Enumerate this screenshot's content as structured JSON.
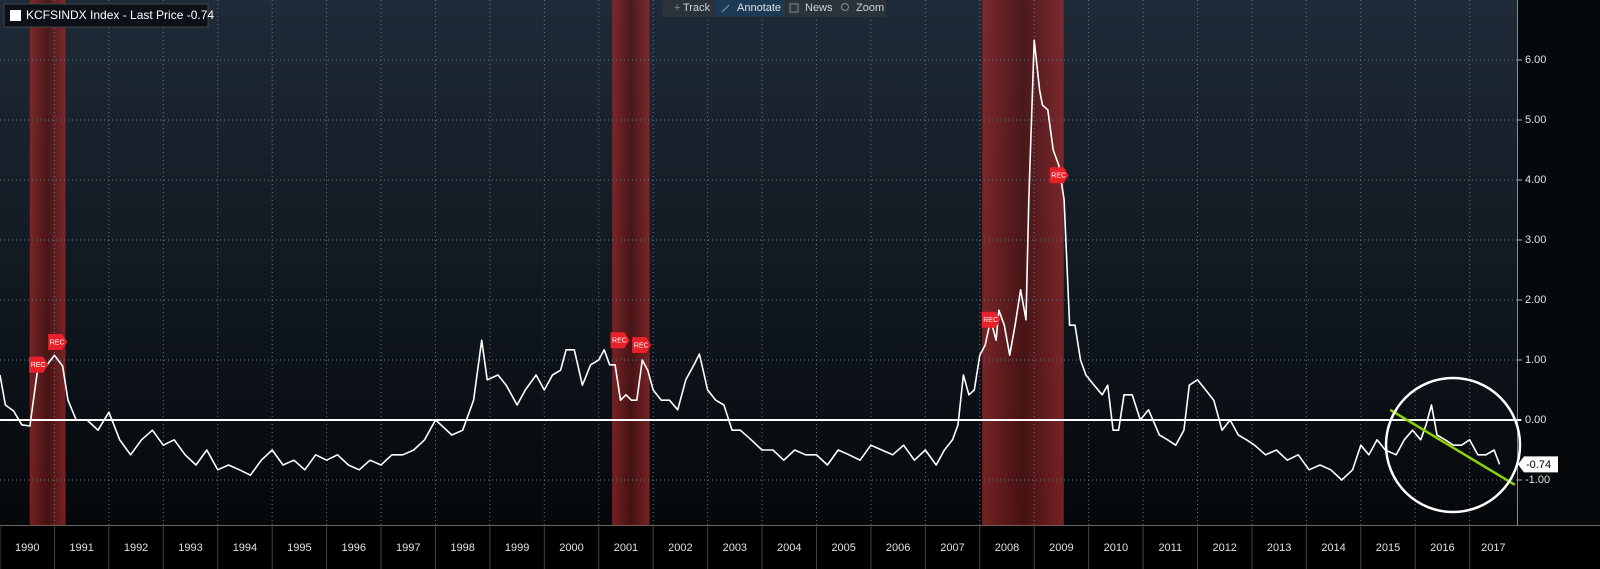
{
  "toolbar": [
    "Track",
    "Annotate",
    "News",
    "Zoom"
  ],
  "chart_data": {
    "type": "line",
    "legend": "KCFSINDX Index - Last Price -0.74",
    "last_value_label": "-0.74",
    "xlim": [
      1990,
      2017.87
    ],
    "xticks": [
      1990,
      1991,
      1992,
      1993,
      1994,
      1995,
      1996,
      1997,
      1998,
      1999,
      2000,
      2001,
      2002,
      2003,
      2004,
      2005,
      2006,
      2007,
      2008,
      2009,
      2010,
      2011,
      2012,
      2013,
      2014,
      2015,
      2016,
      2017
    ],
    "ylim": [
      -1.75,
      7
    ],
    "yticks": [
      {
        "value": -1,
        "label": "-1.00"
      },
      {
        "value": 0,
        "label": "0.00"
      },
      {
        "value": 1,
        "label": "1.00"
      },
      {
        "value": 2,
        "label": "2.00"
      },
      {
        "value": 3,
        "label": "3.00"
      },
      {
        "value": 4,
        "label": "4.00"
      },
      {
        "value": 5,
        "label": "5.00"
      },
      {
        "value": 6,
        "label": "6.00"
      }
    ],
    "grid": true,
    "reference_line": 0,
    "shaded_regions": [
      [
        1990.55,
        1991.2
      ],
      [
        2001.25,
        2001.93
      ],
      [
        2008.05,
        2009.54
      ]
    ],
    "shade_color": "#8a2020",
    "series": [
      {
        "name": "KCFSINDX Index",
        "color": "#ffffff",
        "x": [
          1990.0,
          1990.1,
          1990.25,
          1990.4,
          1990.55,
          1990.7,
          1990.85,
          1991.0,
          1991.15,
          1991.25,
          1991.4,
          1991.6,
          1991.8,
          1992.0,
          1992.2,
          1992.4,
          1992.6,
          1992.8,
          1993.0,
          1993.2,
          1993.4,
          1993.6,
          1993.8,
          1994.0,
          1994.2,
          1994.4,
          1994.6,
          1994.8,
          1995.0,
          1995.2,
          1995.4,
          1995.6,
          1995.8,
          1996.0,
          1996.2,
          1996.4,
          1996.6,
          1996.8,
          1997.0,
          1997.2,
          1997.4,
          1997.6,
          1997.8,
          1998.0,
          1998.1,
          1998.3,
          1998.5,
          1998.7,
          1998.85,
          1998.95,
          1999.15,
          1999.3,
          1999.5,
          1999.65,
          1999.85,
          2000.0,
          2000.15,
          2000.3,
          2000.4,
          2000.55,
          2000.7,
          2000.85,
          2001.0,
          2001.1,
          2001.2,
          2001.3,
          2001.4,
          2001.5,
          2001.6,
          2001.7,
          2001.8,
          2001.9,
          2002.0,
          2002.15,
          2002.3,
          2002.45,
          2002.6,
          2002.75,
          2002.85,
          2003.0,
          2003.15,
          2003.3,
          2003.45,
          2003.6,
          2003.8,
          2004.0,
          2004.2,
          2004.4,
          2004.6,
          2004.8,
          2005.0,
          2005.2,
          2005.4,
          2005.6,
          2005.8,
          2006.0,
          2006.2,
          2006.4,
          2006.6,
          2006.8,
          2007.0,
          2007.2,
          2007.35,
          2007.5,
          2007.6,
          2007.7,
          2007.8,
          2007.9,
          2008.0,
          2008.1,
          2008.2,
          2008.3,
          2008.35,
          2008.45,
          2008.55,
          2008.65,
          2008.75,
          2008.85,
          2008.9,
          2009.0,
          2009.1,
          2009.15,
          2009.25,
          2009.35,
          2009.45,
          2009.55,
          2009.65,
          2009.75,
          2009.85,
          2009.95,
          2010.1,
          2010.25,
          2010.35,
          2010.45,
          2010.55,
          2010.65,
          2010.8,
          2010.95,
          2011.1,
          2011.3,
          2011.45,
          2011.6,
          2011.75,
          2011.85,
          2012.0,
          2012.15,
          2012.3,
          2012.45,
          2012.6,
          2012.75,
          2012.9,
          2013.05,
          2013.25,
          2013.45,
          2013.65,
          2013.85,
          2014.05,
          2014.25,
          2014.45,
          2014.65,
          2014.85,
          2015.0,
          2015.15,
          2015.3,
          2015.45,
          2015.65,
          2015.8,
          2015.95,
          2016.1,
          2016.2,
          2016.3,
          2016.4,
          2016.55,
          2016.7,
          2016.85,
          2017.0,
          2017.15,
          2017.3,
          2017.45,
          2017.55
        ],
        "values": [
          0.75,
          0.25,
          0.15,
          -0.08,
          -0.1,
          0.9,
          0.9,
          1.08,
          0.9,
          0.33,
          0.0,
          0.0,
          -0.17,
          0.13,
          -0.33,
          -0.58,
          -0.33,
          -0.17,
          -0.42,
          -0.33,
          -0.58,
          -0.75,
          -0.5,
          -0.83,
          -0.75,
          -0.83,
          -0.92,
          -0.67,
          -0.5,
          -0.75,
          -0.67,
          -0.83,
          -0.58,
          -0.67,
          -0.58,
          -0.75,
          -0.83,
          -0.67,
          -0.75,
          -0.58,
          -0.58,
          -0.5,
          -0.33,
          0.0,
          -0.08,
          -0.25,
          -0.17,
          0.33,
          1.33,
          0.67,
          0.75,
          0.58,
          0.25,
          0.5,
          0.75,
          0.5,
          0.75,
          0.83,
          1.17,
          1.17,
          0.58,
          0.92,
          1.0,
          1.17,
          0.92,
          0.92,
          0.33,
          0.42,
          0.33,
          0.33,
          1.0,
          0.83,
          0.5,
          0.33,
          0.33,
          0.17,
          0.67,
          0.92,
          1.1,
          0.5,
          0.33,
          0.25,
          -0.17,
          -0.17,
          -0.33,
          -0.5,
          -0.5,
          -0.67,
          -0.5,
          -0.58,
          -0.58,
          -0.75,
          -0.5,
          -0.58,
          -0.67,
          -0.42,
          -0.5,
          -0.58,
          -0.42,
          -0.67,
          -0.5,
          -0.75,
          -0.5,
          -0.33,
          -0.08,
          0.75,
          0.42,
          0.5,
          1.08,
          1.25,
          1.67,
          1.33,
          1.83,
          1.58,
          1.08,
          1.58,
          2.17,
          1.67,
          3.67,
          6.33,
          5.5,
          5.25,
          5.17,
          4.5,
          4.25,
          3.67,
          1.58,
          1.58,
          1.0,
          0.75,
          0.58,
          0.42,
          0.58,
          -0.17,
          -0.17,
          0.42,
          0.42,
          0.0,
          0.17,
          -0.25,
          -0.33,
          -0.42,
          -0.17,
          0.58,
          0.67,
          0.5,
          0.33,
          -0.17,
          0.0,
          -0.25,
          -0.33,
          -0.42,
          -0.58,
          -0.5,
          -0.67,
          -0.58,
          -0.83,
          -0.75,
          -0.83,
          -1.0,
          -0.83,
          -0.42,
          -0.58,
          -0.33,
          -0.5,
          -0.58,
          -0.33,
          -0.17,
          -0.33,
          -0.08,
          0.25,
          -0.25,
          -0.33,
          -0.42,
          -0.42,
          -0.33,
          -0.58,
          -0.58,
          -0.5,
          -0.74
        ]
      }
    ],
    "annotations": [
      {
        "label": "REC",
        "x": 1990.7,
        "y": 0.92
      },
      {
        "label": "REC",
        "x": 1991.05,
        "y": 1.3
      },
      {
        "label": "REC",
        "x": 2001.38,
        "y": 1.33
      },
      {
        "label": "REC",
        "x": 2001.78,
        "y": 1.25
      },
      {
        "label": "REC",
        "x": 2008.2,
        "y": 1.67
      },
      {
        "label": "REC",
        "x": 2009.45,
        "y": 4.08
      }
    ],
    "trend_line": {
      "x": [
        2015.54,
        2017.83
      ],
      "y": [
        0.17,
        -1.08
      ],
      "color": "#8fd400"
    }
  }
}
